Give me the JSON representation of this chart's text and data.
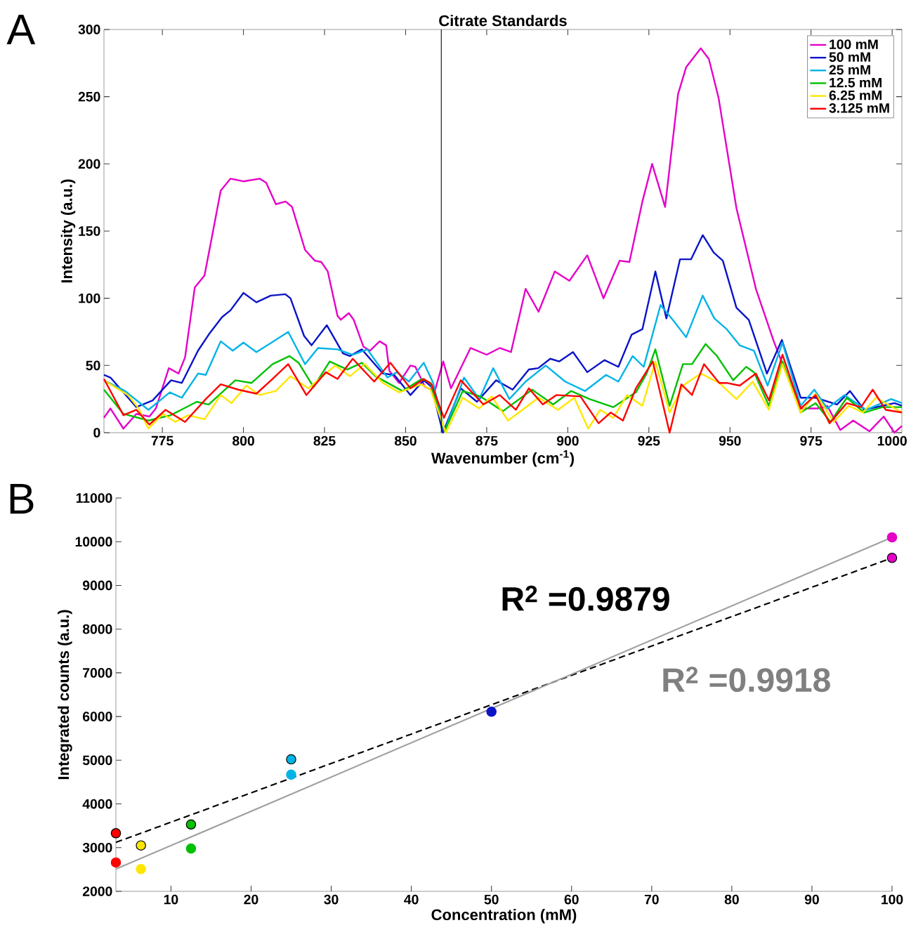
{
  "chart_data": [
    {
      "type": "line",
      "title": "Citrate Standards",
      "xlabel": "Wavenumber (cm$^{-1}$)",
      "ylabel": "Intensity (a.u.)",
      "xlim": [
        757,
        1003
      ],
      "ylim": [
        0,
        300
      ],
      "xticks": [
        775,
        800,
        825,
        850,
        875,
        900,
        925,
        950,
        975,
        1000
      ],
      "yticks": [
        0,
        50,
        100,
        150,
        200,
        250,
        300
      ],
      "legend": "top right",
      "ref_lines": [
        {
          "axis": "x",
          "value": 861,
          "color": "#000000"
        }
      ],
      "annotations": [
        "A"
      ],
      "series": [
        {
          "name": "100 mM",
          "color": "#e600c8",
          "x": [
            757,
            759,
            763,
            767,
            771,
            773,
            777,
            780,
            782,
            785,
            788,
            790,
            793,
            796,
            800,
            805,
            807,
            810,
            813,
            815,
            819,
            822,
            824,
            826,
            829,
            830,
            832.5,
            834,
            837,
            839,
            842,
            844,
            845,
            848,
            851.5,
            853,
            856,
            859,
            861.6,
            864,
            870,
            875,
            879,
            882.5,
            887,
            891,
            896,
            900.5,
            906,
            911,
            916,
            919,
            923,
            926,
            930,
            934,
            936.5,
            941,
            943.5,
            946.5,
            952,
            958,
            963.5,
            966.7,
            972,
            977,
            980,
            984,
            988,
            993,
            997.4,
            1000.7,
            1003
          ],
          "values": [
            11,
            18,
            3,
            14,
            12,
            18,
            48,
            44,
            56,
            108,
            117,
            142,
            180,
            189,
            187,
            189,
            186,
            170,
            172,
            168,
            136,
            128,
            127,
            120,
            87,
            84,
            89,
            84,
            64,
            61,
            68,
            65,
            46,
            37,
            50,
            49,
            34,
            31,
            53,
            33,
            63,
            58,
            63,
            60,
            107,
            90,
            120,
            113,
            132,
            100,
            128,
            127,
            172,
            200,
            168,
            252,
            272,
            286,
            278,
            249,
            167,
            107,
            68,
            48,
            18,
            18,
            20,
            2,
            9,
            1,
            12,
            0,
            5
          ]
        },
        {
          "name": "50 mM",
          "color": "#0a14c8",
          "x": [
            757,
            759,
            767,
            772,
            777.7,
            781,
            786,
            789.3,
            793.4,
            796,
            800,
            804,
            808.4,
            812.9,
            814.5,
            818.7,
            821,
            825.7,
            830.7,
            832.8,
            836.5,
            843,
            846.5,
            851.5,
            855.6,
            858,
            861.5,
            867,
            872,
            877.9,
            883,
            888,
            890.9,
            894.6,
            897.4,
            901.6,
            906,
            911.3,
            915.6,
            919.7,
            923,
            927,
            930.4,
            934.6,
            938,
            941.6,
            945,
            947.8,
            952,
            955.8,
            961.4,
            966,
            971.8,
            976.4,
            983,
            987,
            991.4,
            1000.7,
            1003
          ],
          "values": [
            43,
            41,
            19,
            24,
            39,
            37,
            61,
            73,
            86,
            91,
            104,
            97,
            102,
            103,
            100,
            72,
            65,
            80,
            59,
            57,
            62,
            44,
            43,
            28,
            39,
            34,
            0,
            33,
            23,
            39,
            32,
            47,
            48,
            55,
            53,
            60,
            45,
            54,
            49,
            73,
            77,
            120,
            85,
            129,
            129,
            147,
            134,
            128,
            93,
            84,
            44,
            69,
            26,
            26,
            21,
            31,
            17,
            22,
            20
          ]
        },
        {
          "name": "25 mM",
          "color": "#00b4e6",
          "x": [
            757,
            763.5,
            770.7,
            777.3,
            781,
            786,
            788.4,
            793,
            796.7,
            800,
            804,
            808,
            813.8,
            819,
            823,
            829,
            833.7,
            838.2,
            844.4,
            847.3,
            851,
            855.6,
            858.5,
            862,
            868,
            872.7,
            877,
            882,
            887,
            893.2,
            899.2,
            905.3,
            911.8,
            915.6,
            920,
            923.4,
            928.6,
            932.7,
            936.5,
            941.6,
            945.2,
            949,
            953,
            957.4,
            961.6,
            966.2,
            971.8,
            976,
            980,
            985.3,
            992,
            999.7,
            1003
          ],
          "values": [
            39,
            31,
            17,
            30,
            26,
            44,
            43,
            68,
            61,
            67,
            60,
            66,
            75,
            51,
            63,
            62,
            58,
            62,
            41,
            45,
            38,
            52,
            37,
            1,
            41,
            25,
            48,
            25,
            38,
            50,
            38,
            31,
            43,
            38,
            57,
            49,
            95,
            83,
            71,
            102,
            85,
            77,
            65,
            61,
            35,
            67,
            20,
            32,
            18,
            28,
            17,
            25,
            22
          ]
        },
        {
          "name": "12.5 mM",
          "color": "#00c000",
          "x": [
            757,
            763,
            770.7,
            777.6,
            785.6,
            789.3,
            797.5,
            802.5,
            809,
            814.2,
            817,
            821.6,
            826.6,
            832,
            836.5,
            840.7,
            849,
            855,
            857.7,
            862,
            867.6,
            873,
            880,
            889,
            895.5,
            901,
            906.7,
            914,
            921,
            924.3,
            927,
            931.4,
            935.5,
            938.3,
            942.5,
            946,
            951,
            955,
            957.4,
            962,
            966.2,
            971.8,
            976.4,
            981,
            986,
            991.4,
            997,
            1003
          ],
          "values": [
            32,
            14,
            9,
            13,
            23,
            21,
            39,
            37,
            51,
            57,
            52,
            34,
            53,
            47,
            52,
            42,
            31,
            40,
            37,
            1,
            31,
            27,
            16,
            32,
            21,
            31,
            25,
            19,
            30,
            44,
            62,
            20,
            51,
            51,
            66,
            57,
            39,
            49,
            45,
            20,
            53,
            15,
            22,
            8,
            26,
            15,
            19,
            19
          ]
        },
        {
          "name": "6.25 mM",
          "color": "#ffe600",
          "x": [
            757,
            764.4,
            767.7,
            770.7,
            775.2,
            779,
            783,
            788,
            793,
            796.3,
            800.9,
            805,
            810,
            814.5,
            820,
            828.3,
            832.8,
            837.4,
            843,
            848,
            854.8,
            857.7,
            862.4,
            867.6,
            872.7,
            876.5,
            881.6,
            891,
            897,
            902,
            906.3,
            910,
            914,
            918.3,
            923,
            927,
            931.4,
            935.5,
            941,
            946.7,
            952,
            957,
            962,
            966.2,
            971.8,
            976.4,
            982,
            986.6,
            991,
            995,
            1003
          ],
          "values": [
            39,
            28,
            18,
            3,
            14,
            8,
            13,
            10,
            28,
            22,
            35,
            28,
            31,
            42,
            33,
            50,
            42,
            51,
            37,
            30,
            36,
            32,
            0,
            26,
            18,
            27,
            9,
            26,
            17,
            26,
            3,
            17,
            11,
            28,
            20,
            53,
            15,
            35,
            44,
            37,
            25,
            38,
            17,
            51,
            15,
            29,
            8,
            20,
            15,
            26,
            15
          ]
        },
        {
          "name": "3.125 mM",
          "color": "#ff0000",
          "x": [
            757,
            763,
            767,
            771,
            776,
            782,
            788.4,
            793,
            798.4,
            804,
            809,
            813.8,
            819.4,
            825.4,
            829,
            833.7,
            840.3,
            845.3,
            851.5,
            855.6,
            858,
            861.8,
            867,
            874,
            879,
            884,
            888,
            892.3,
            896.5,
            903.9,
            909.5,
            913.2,
            917,
            921,
            926.2,
            931.4,
            935,
            938.3,
            942,
            946.7,
            949,
            953,
            958,
            962,
            966.2,
            971.8,
            976.4,
            980.7,
            986,
            990.4,
            994,
            998,
            1003
          ],
          "values": [
            40,
            13,
            17,
            6,
            17,
            8,
            25,
            36,
            32,
            29,
            40,
            51,
            28,
            45,
            40,
            55,
            38,
            52,
            33,
            40,
            36,
            11,
            39,
            21,
            28,
            17,
            33,
            21,
            28,
            27,
            7,
            15,
            9,
            33,
            53,
            0,
            36,
            28,
            51,
            37,
            37,
            35,
            44,
            24,
            58,
            18,
            28,
            7,
            22,
            19,
            32,
            17,
            15
          ]
        }
      ]
    },
    {
      "type": "scatter",
      "xlabel": "Concentration (mM)",
      "ylabel": "Integrated counts (a.u.)",
      "xlim": [
        3.125,
        100
      ],
      "ylim": [
        2000,
        11000
      ],
      "xticks": [
        10,
        20,
        30,
        40,
        50,
        60,
        70,
        80,
        90,
        100
      ],
      "yticks": [
        2000,
        3000,
        4000,
        5000,
        6000,
        7000,
        8000,
        9000,
        10000,
        11000
      ],
      "annotations": [
        "B",
        "R$^{2}$ =0.9879",
        "R$^{2}$ =0.9918"
      ],
      "x": [
        3.125,
        6.25,
        12.5,
        25,
        50,
        100
      ],
      "series": [
        {
          "type": "scatter",
          "marker": "circle",
          "colors": [
            "#ff0000",
            "#ffe600",
            "#00c000",
            "#00b4e6",
            "#0a14c8",
            "#e600c8"
          ],
          "values": [
            3330,
            3050,
            3530,
            5020,
            null,
            9630
          ]
        },
        {
          "type": "scatter",
          "marker": "circle",
          "colors": [
            "#ff0000",
            "#ffe600",
            "#00c000",
            "#00b4e6",
            "#0a14c8",
            "#e600c8"
          ],
          "values": [
            2660,
            2510,
            2980,
            4670,
            6110,
            10100
          ]
        },
        {
          "type": "line",
          "x": [
            3.125,
            100
          ],
          "values": [
            3120,
            9630
          ],
          "color": "#000000",
          "line_style": "dashed"
        },
        {
          "type": "line",
          "x": [
            3.125,
            100
          ],
          "values": [
            2510,
            10100
          ],
          "color": "#a0a0a0",
          "line_style": "solid"
        }
      ]
    }
  ]
}
